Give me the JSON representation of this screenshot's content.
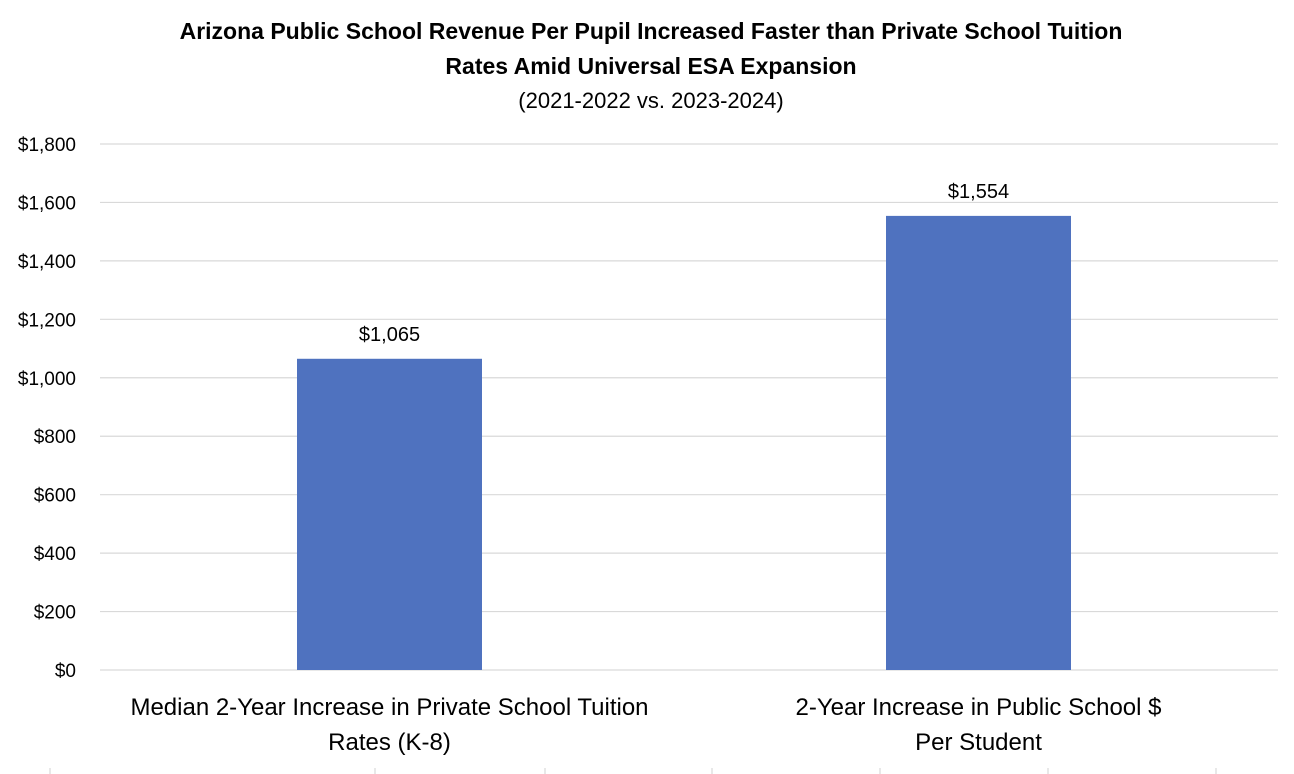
{
  "chart_data": {
    "type": "bar",
    "title": "Arizona Public School Revenue Per Pupil Increased Faster than Private School Tuition Rates Amid Universal ESA Expansion",
    "subtitle": "(2021-2022 vs. 2023-2024)",
    "categories": [
      [
        "Median 2-Year Increase in Private School Tuition",
        "Rates (K-8)"
      ],
      [
        "2-Year Increase in Public School $",
        "Per Student"
      ]
    ],
    "values": [
      1065,
      1554
    ],
    "data_labels": [
      "$1,065",
      "$1,554"
    ],
    "ylim": [
      0,
      1800
    ],
    "yticks": [
      0,
      200,
      400,
      600,
      800,
      1000,
      1200,
      1400,
      1600,
      1800
    ],
    "ytick_labels": [
      "$0",
      "$200",
      "$400",
      "$600",
      "$800",
      "$1,000",
      "$1,200",
      "$1,400",
      "$1,600",
      "$1,800"
    ],
    "xlabel": "",
    "ylabel": "",
    "grid": true,
    "legend": "none",
    "bar_color": "#4F72BF",
    "grid_color": "#D9D9D9"
  }
}
